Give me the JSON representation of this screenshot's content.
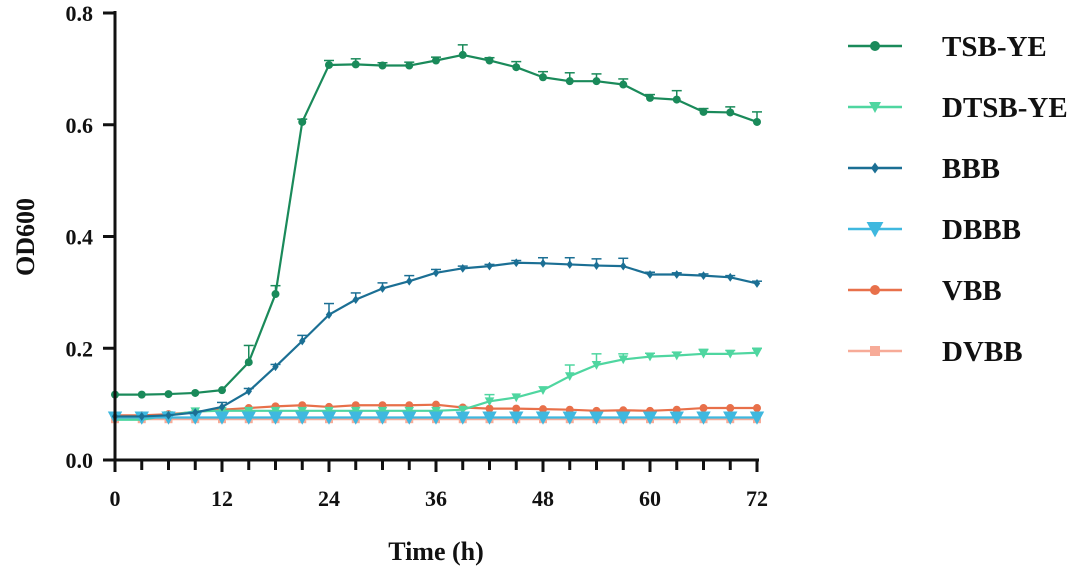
{
  "chart_data": {
    "type": "line",
    "title": "",
    "xlabel": "Time (h)",
    "ylabel": "OD600",
    "xlim": [
      0,
      72
    ],
    "ylim": [
      0,
      0.8
    ],
    "xticks": [
      0,
      12,
      24,
      36,
      48,
      60,
      72
    ],
    "yticks": [
      0.0,
      0.2,
      0.4,
      0.6,
      0.8
    ],
    "ytick_labels": [
      "0.0",
      "0.2",
      "0.4",
      "0.6",
      "0.8"
    ],
    "grid": false,
    "legend_position": "right",
    "x": [
      0,
      3,
      6,
      9,
      12,
      15,
      18,
      21,
      24,
      27,
      30,
      33,
      36,
      39,
      42,
      45,
      48,
      51,
      54,
      57,
      60,
      63,
      66,
      69,
      72
    ],
    "series": [
      {
        "name": "TSB-YE",
        "color": "#1a8a5a",
        "marker": "circle",
        "values": [
          0.117,
          0.117,
          0.118,
          0.12,
          0.125,
          0.175,
          0.297,
          0.605,
          0.707,
          0.708,
          0.706,
          0.706,
          0.715,
          0.725,
          0.715,
          0.703,
          0.685,
          0.678,
          0.678,
          0.672,
          0.648,
          0.645,
          0.623,
          0.622,
          0.605
        ],
        "errors": [
          0,
          0,
          0,
          0,
          0,
          0.03,
          0.015,
          0.005,
          0.008,
          0.01,
          0.005,
          0.006,
          0.006,
          0.018,
          0.005,
          0.01,
          0.01,
          0.015,
          0.013,
          0.01,
          0.006,
          0.016,
          0.006,
          0.01,
          0.018
        ]
      },
      {
        "name": "DTSB-YE",
        "color": "#4fd6a0",
        "marker": "triangle-down",
        "values": [
          0.072,
          0.072,
          0.08,
          0.087,
          0.088,
          0.088,
          0.088,
          0.088,
          0.088,
          0.088,
          0.088,
          0.088,
          0.088,
          0.09,
          0.105,
          0.112,
          0.125,
          0.15,
          0.17,
          0.18,
          0.185,
          0.187,
          0.19,
          0.19,
          0.192
        ],
        "errors": [
          0,
          0,
          0,
          0,
          0,
          0,
          0,
          0,
          0,
          0,
          0,
          0,
          0,
          0,
          0.012,
          0,
          0,
          0.02,
          0.02,
          0.01,
          0.006,
          0.006,
          0.008,
          0.006,
          0.008
        ]
      },
      {
        "name": "BBB",
        "color": "#1b6f94",
        "marker": "diamond",
        "values": [
          0.078,
          0.078,
          0.08,
          0.085,
          0.095,
          0.123,
          0.167,
          0.213,
          0.26,
          0.287,
          0.307,
          0.32,
          0.335,
          0.343,
          0.347,
          0.353,
          0.352,
          0.35,
          0.348,
          0.347,
          0.332,
          0.332,
          0.33,
          0.327,
          0.316
        ],
        "errors": [
          0,
          0,
          0,
          0,
          0.008,
          0.005,
          0.004,
          0.01,
          0.02,
          0.012,
          0.01,
          0.01,
          0.006,
          0.004,
          0.003,
          0.004,
          0.01,
          0.012,
          0.012,
          0.014,
          0.004,
          0.003,
          0.003,
          0.003,
          0.004
        ]
      },
      {
        "name": "DBBB",
        "color": "#3fb8df",
        "marker": "triangle-down",
        "values": [
          0.076,
          0.076,
          0.076,
          0.076,
          0.076,
          0.076,
          0.076,
          0.076,
          0.076,
          0.076,
          0.076,
          0.076,
          0.076,
          0.076,
          0.076,
          0.076,
          0.076,
          0.076,
          0.076,
          0.076,
          0.076,
          0.076,
          0.076,
          0.076,
          0.076
        ]
      },
      {
        "name": "VBB",
        "color": "#e8704a",
        "marker": "circle",
        "values": [
          0.08,
          0.08,
          0.082,
          0.086,
          0.09,
          0.093,
          0.096,
          0.098,
          0.095,
          0.098,
          0.098,
          0.098,
          0.099,
          0.094,
          0.092,
          0.092,
          0.091,
          0.09,
          0.088,
          0.089,
          0.088,
          0.09,
          0.093,
          0.093,
          0.093
        ]
      },
      {
        "name": "DVBB",
        "color": "#f7ab98",
        "marker": "square",
        "values": [
          0.073,
          0.073,
          0.073,
          0.073,
          0.073,
          0.073,
          0.073,
          0.073,
          0.073,
          0.073,
          0.073,
          0.073,
          0.073,
          0.073,
          0.073,
          0.073,
          0.073,
          0.073,
          0.073,
          0.073,
          0.073,
          0.073,
          0.073,
          0.073,
          0.073
        ]
      }
    ]
  }
}
